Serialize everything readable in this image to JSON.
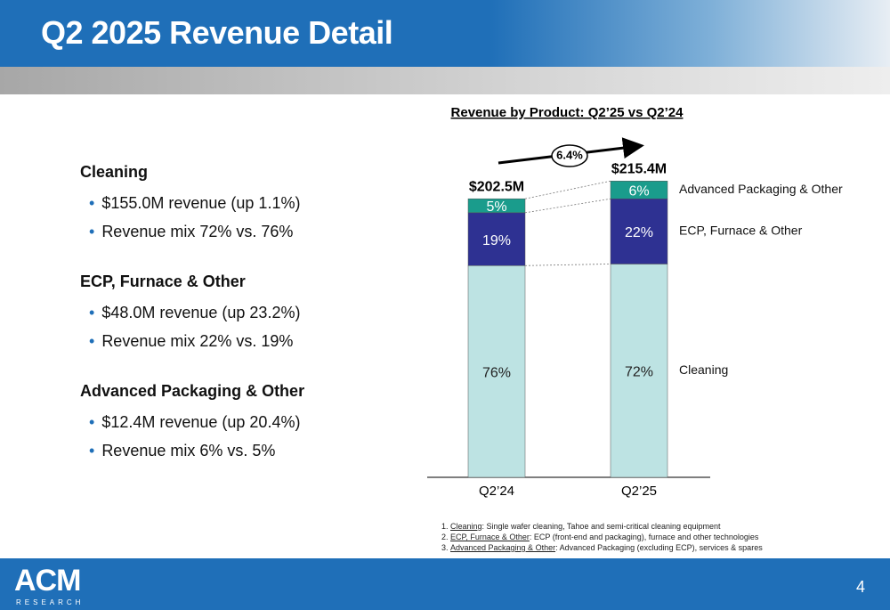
{
  "header": {
    "title": "Q2 2025 Revenue Detail"
  },
  "sections": [
    {
      "title": "Cleaning",
      "items": [
        "$155.0M revenue (up 1.1%)",
        "Revenue mix 72% vs. 76%"
      ]
    },
    {
      "title": "ECP, Furnace & Other",
      "items": [
        "$48.0M revenue (up 23.2%)",
        "Revenue mix 22% vs. 19%"
      ]
    },
    {
      "title": "Advanced Packaging & Other",
      "items": [
        "$12.4M revenue (up 20.4%)",
        "Revenue mix 6% vs. 5%"
      ]
    }
  ],
  "chart_data": {
    "type": "stacked-bar",
    "title": "Revenue by Product: Q2’25 vs Q2’24",
    "categories": [
      "Q2’24",
      "Q2’25"
    ],
    "totals": [
      {
        "value": 202.5,
        "label": "$202.5M"
      },
      {
        "value": 215.4,
        "label": "$215.4M"
      }
    ],
    "growth": {
      "value": 6.4,
      "label": "6.4%"
    },
    "ylim": [
      0,
      224
    ],
    "series": [
      {
        "name": "Cleaning",
        "color": "#bde3e3",
        "values": [
          76,
          72
        ],
        "value_labels": [
          "76%",
          "72%"
        ]
      },
      {
        "name": "ECP, Furnace & Other",
        "color": "#2e3192",
        "values": [
          19,
          22
        ],
        "value_labels": [
          "19%",
          "22%"
        ]
      },
      {
        "name": "Advanced Packaging & Other",
        "color": "#1a9c8c",
        "values": [
          5,
          6
        ],
        "value_labels": [
          "5%",
          "6%"
        ]
      }
    ]
  },
  "footnotes": [
    {
      "term": "Cleaning",
      "text": ": Single wafer cleaning, Tahoe and semi-critical cleaning equipment"
    },
    {
      "term": "ECP, Furnace & Other",
      "text": ": ECP (front-end and packaging), furnace and other technologies"
    },
    {
      "term": "Advanced Packaging & Other",
      "text": ": Advanced Packaging (excluding ECP), services & spares"
    }
  ],
  "footer": {
    "logo": "ACM",
    "logo_sub": "RESEARCH",
    "page_number": "4"
  }
}
